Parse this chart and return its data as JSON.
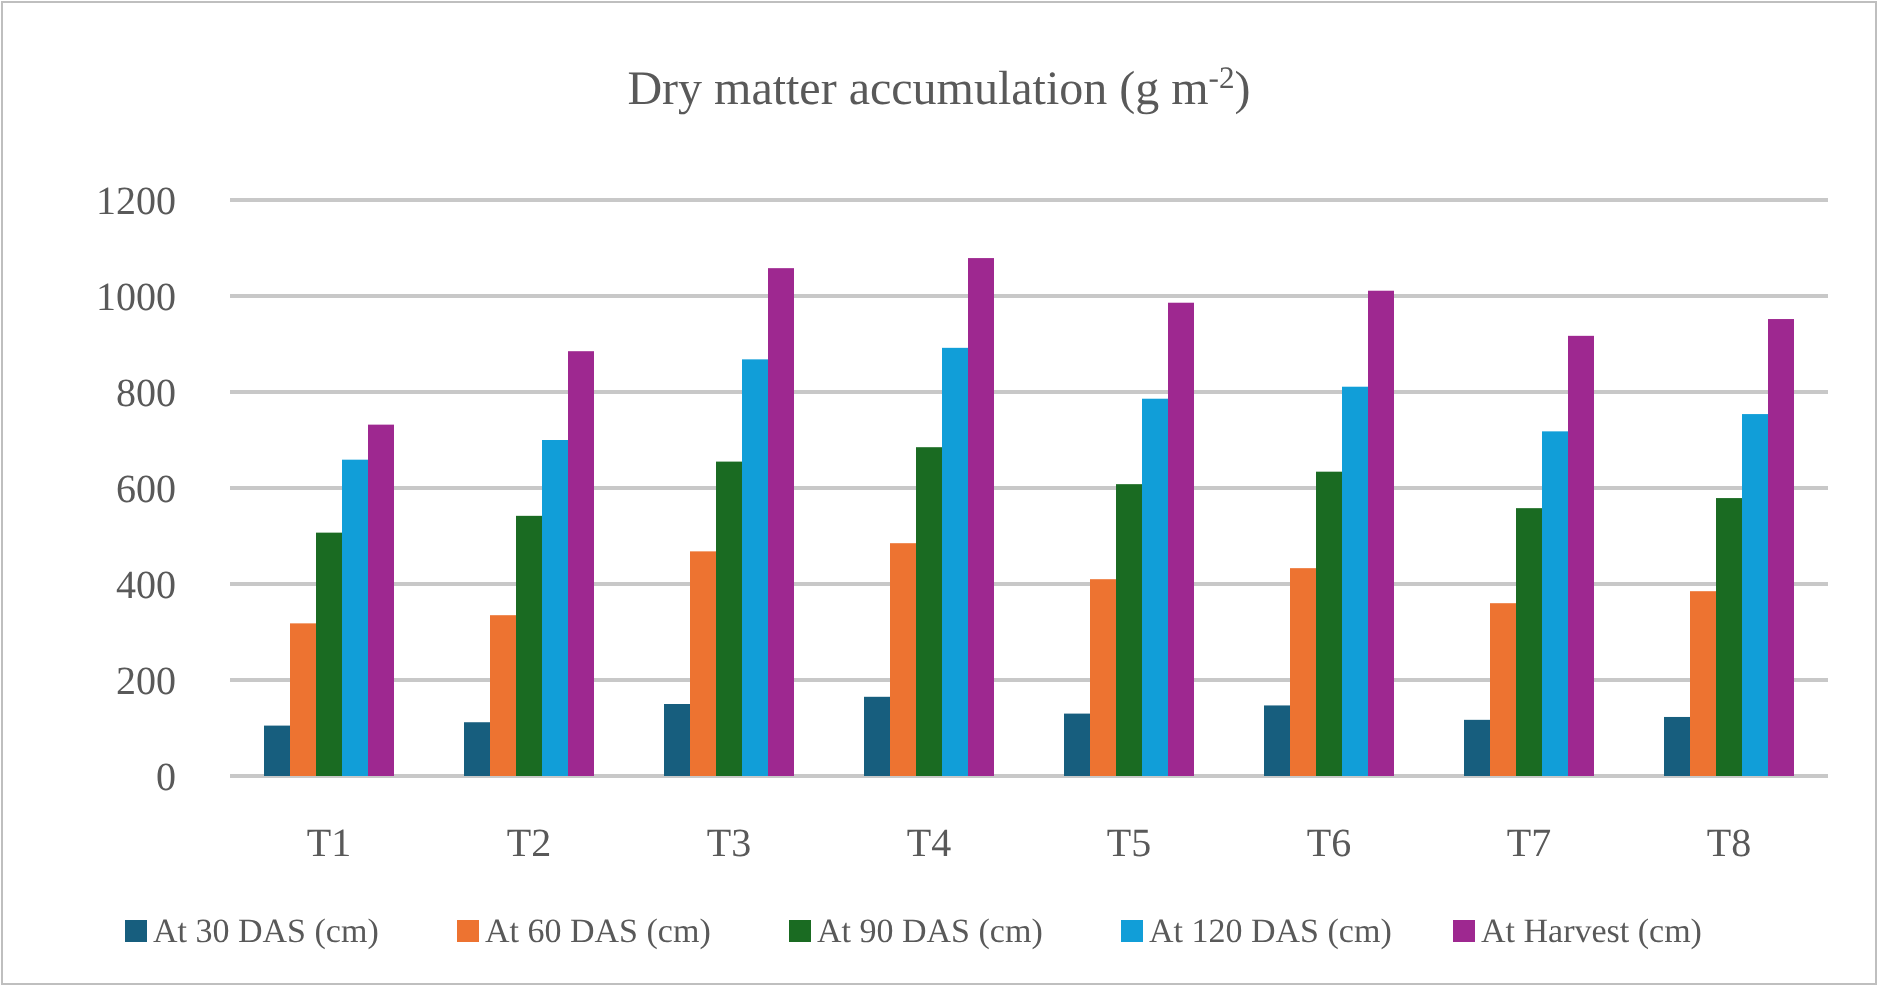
{
  "chart_data": {
    "type": "bar",
    "title": "Dry matter accumulation (g m$^{-2}$)",
    "categories": [
      "T1",
      "T2",
      "T3",
      "T4",
      "T5",
      "T6",
      "T7",
      "T8"
    ],
    "series": [
      {
        "name": "At 30 DAS (cm)",
        "color": "#175e7e",
        "values": [
          105,
          112,
          150,
          165,
          130,
          147,
          117,
          123
        ]
      },
      {
        "name": "At 60 DAS (cm)",
        "color": "#ed7331",
        "values": [
          318,
          335,
          468,
          485,
          410,
          433,
          360,
          385
        ]
      },
      {
        "name": "At 90 DAS (cm)",
        "color": "#1a6b22",
        "values": [
          507,
          542,
          655,
          685,
          608,
          634,
          558,
          579
        ]
      },
      {
        "name": "At 120 DAS (cm)",
        "color": "#119ed8",
        "values": [
          659,
          700,
          868,
          892,
          786,
          811,
          718,
          754
        ]
      },
      {
        "name": "At Harvest (cm)",
        "color": "#9e2890",
        "values": [
          732,
          885,
          1058,
          1079,
          986,
          1011,
          917,
          952
        ]
      }
    ],
    "ylim": [
      0,
      1200
    ],
    "yticks": [
      0,
      200,
      400,
      600,
      800,
      1000,
      1200
    ],
    "grid": "y",
    "legend": "bottom"
  }
}
